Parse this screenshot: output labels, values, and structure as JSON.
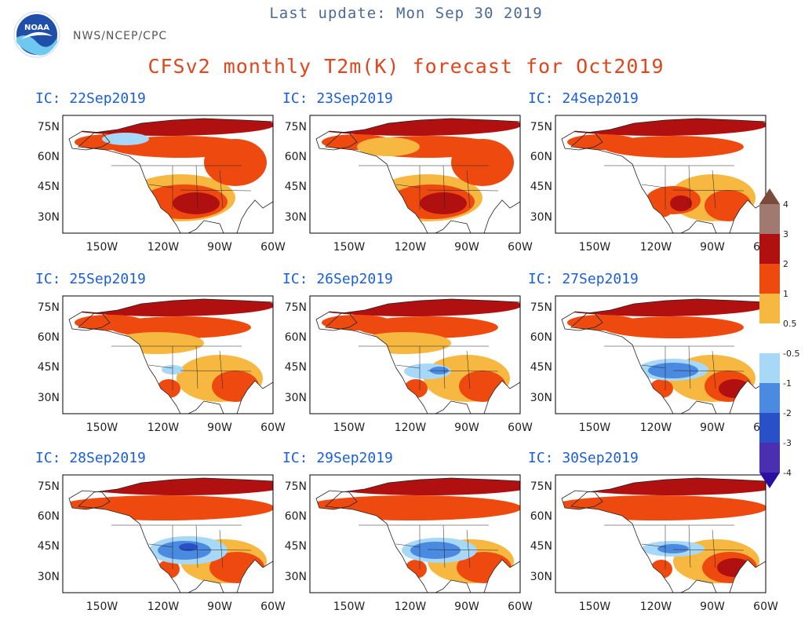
{
  "header": {
    "last_update": "Last update: Mon Sep 30 2019",
    "org": "NWS/NCEP/CPC",
    "title": "CFSv2 monthly T2m(K) forecast for Oct2019",
    "logo_text": "NOAA"
  },
  "lat_labels": [
    "75N",
    "60N",
    "45N",
    "30N"
  ],
  "lon_labels": [
    "150W",
    "120W",
    "90W",
    "60W"
  ],
  "panels": [
    {
      "ic": "IC: 22Sep2019",
      "variant": 0
    },
    {
      "ic": "IC: 23Sep2019",
      "variant": 1
    },
    {
      "ic": "IC: 24Sep2019",
      "variant": 2
    },
    {
      "ic": "IC: 25Sep2019",
      "variant": 3
    },
    {
      "ic": "IC: 26Sep2019",
      "variant": 4
    },
    {
      "ic": "IC: 27Sep2019",
      "variant": 5
    },
    {
      "ic": "IC: 28Sep2019",
      "variant": 6
    },
    {
      "ic": "IC: 29Sep2019",
      "variant": 7
    },
    {
      "ic": "IC: 30Sep2019",
      "variant": 8
    }
  ],
  "colorbar": {
    "labels": [
      "4",
      "3",
      "2",
      "1",
      "0.5",
      "-0.5",
      "-1",
      "-2",
      "-3",
      "-4"
    ],
    "colors": [
      "#7a4a3a",
      "#a07a70",
      "#b01010",
      "#ee4a10",
      "#f6b840",
      "#ffffff",
      "#a8d8f8",
      "#4a8ae0",
      "#2a50c8",
      "#4a30b0",
      "#2a10a0"
    ]
  },
  "colors": {
    "warm4": "#7a4a3a",
    "warm3": "#b01010",
    "warm2": "#ee4a10",
    "warm1": "#f6b840",
    "cool1": "#a8d8f8",
    "cool2": "#4a8ae0",
    "cool3": "#2a50c8"
  }
}
